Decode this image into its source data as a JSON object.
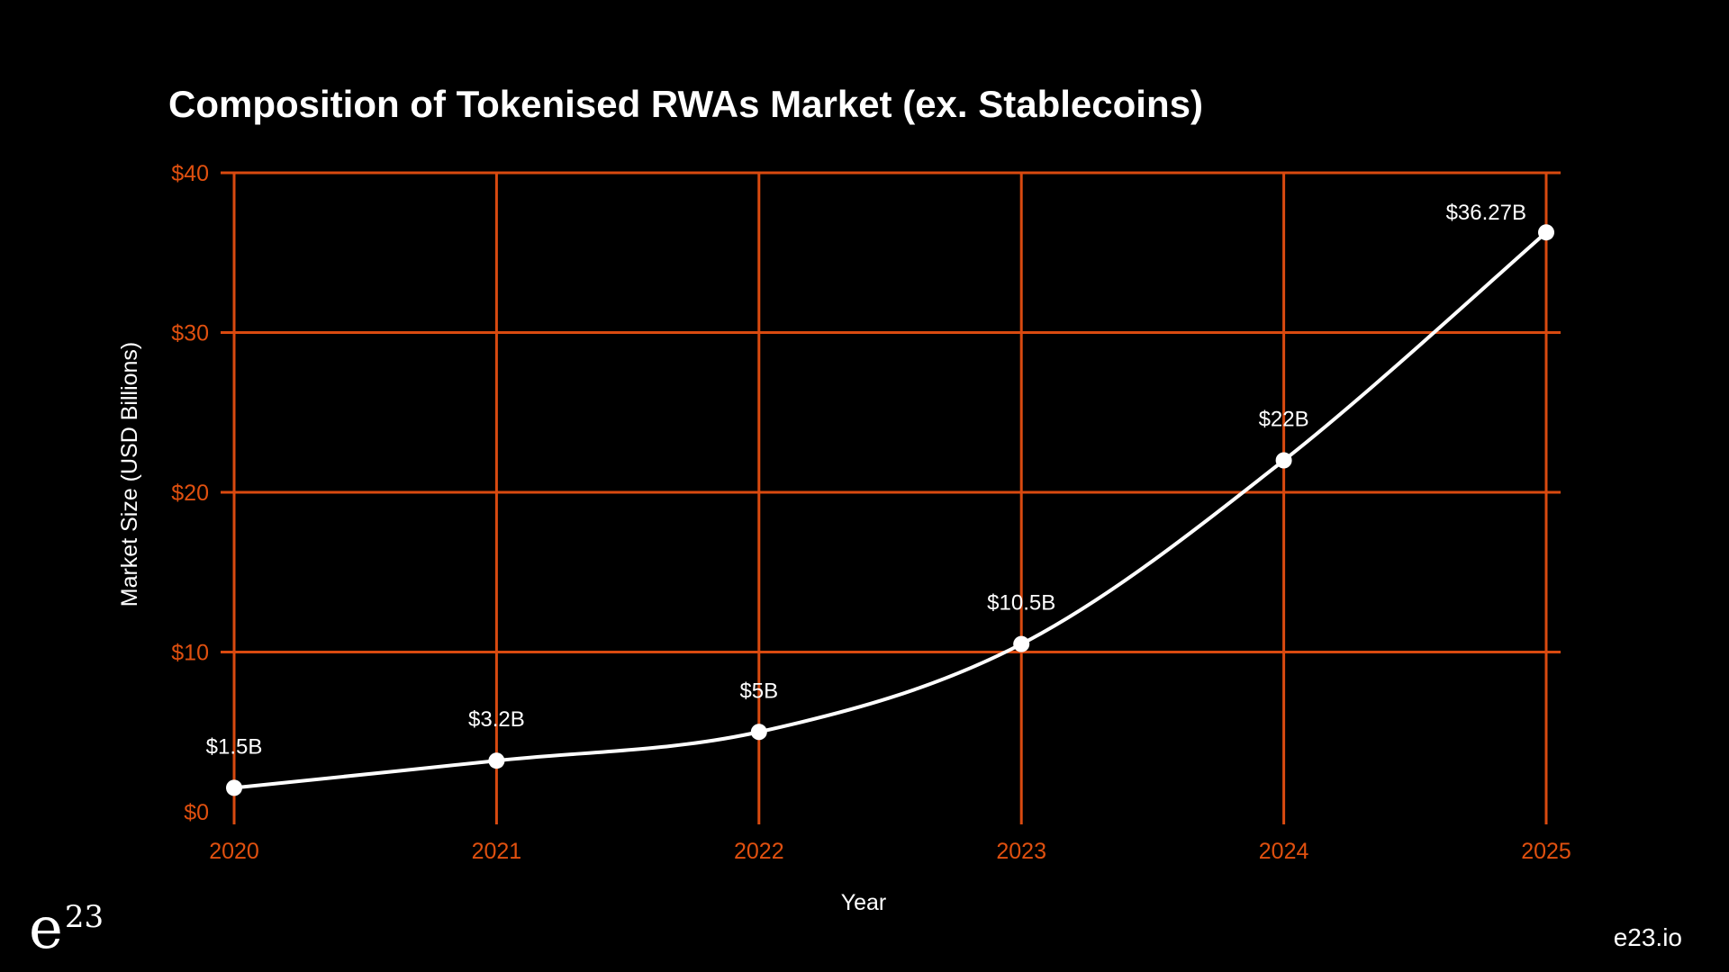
{
  "chart_data": {
    "type": "line",
    "title": "Composition of Tokenised RWAs Market (ex. Stablecoins)",
    "xlabel": "Year",
    "ylabel": "Market Size (USD Billions)",
    "categories": [
      "2020",
      "2021",
      "2022",
      "2023",
      "2024",
      "2025"
    ],
    "values": [
      1.5,
      3.2,
      5,
      10.5,
      22,
      36.27
    ],
    "data_labels": [
      "$1.5B",
      "$3.2B",
      "$5B",
      "$10.5B",
      "$22B",
      "$36.27B"
    ],
    "yticks": [
      0,
      10,
      20,
      30,
      40
    ],
    "ytick_labels": [
      "$0",
      "$10",
      "$20",
      "$30",
      "$40"
    ],
    "ylim": [
      0,
      40
    ],
    "grid": true,
    "smooth": true,
    "colors": {
      "grid": "#d94a10",
      "tick_labels": "#e0500f",
      "line": "#ffffff",
      "background": "#000000"
    }
  },
  "branding": {
    "logo_letter": "e",
    "logo_superscript": "23",
    "site": "e23.io"
  }
}
